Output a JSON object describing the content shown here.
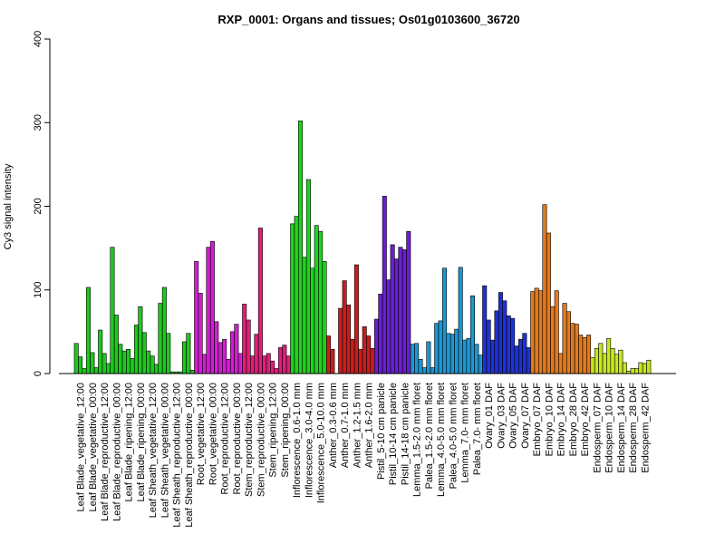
{
  "chart_data": {
    "type": "bar",
    "title": "RXP_0001: Organs and tissues; Os01g0103600_36720",
    "xlabel": "",
    "ylabel": "Cy3 signal intensity",
    "ylim": [
      0,
      400
    ],
    "yticks": [
      0,
      100,
      200,
      300,
      400
    ],
    "grid": false,
    "groups": [
      {
        "label": "Leaf Blade_vegetative_12:00",
        "color": "#1ec81e",
        "values": [
          36,
          20,
          6
        ]
      },
      {
        "label": "Leaf Blade_vegetative_00:00",
        "color": "#1ec81e",
        "values": [
          103,
          25,
          7
        ]
      },
      {
        "label": "Leaf Blade_reproductive_12:00",
        "color": "#1ec81e",
        "values": [
          52,
          24,
          12
        ]
      },
      {
        "label": "Leaf Blade_reproductive_00:00",
        "color": "#1ec81e",
        "values": [
          151,
          70,
          35
        ]
      },
      {
        "label": "Leaf Blade_ripening_12:00",
        "color": "#1ec81e",
        "values": [
          27,
          29,
          18
        ]
      },
      {
        "label": "Leaf Blade_ripening_00:00",
        "color": "#1ec81e",
        "values": [
          58,
          80,
          49
        ]
      },
      {
        "label": "Leaf Sheath_vegetative_12:00",
        "color": "#1ec81e",
        "values": [
          27,
          21,
          11
        ]
      },
      {
        "label": "Leaf Sheath_vegetative_00:00",
        "color": "#1ec81e",
        "values": [
          84,
          103,
          48
        ]
      },
      {
        "label": "Leaf Sheath_reproductive_12:00",
        "color": "#1ec81e",
        "values": [
          2,
          2,
          2
        ]
      },
      {
        "label": "Leaf Sheath_reproductive_00:00",
        "color": "#1ec81e",
        "values": [
          38,
          48,
          4
        ]
      },
      {
        "label": "Root_vegetative_12:00",
        "color": "#d21ed2",
        "values": [
          134,
          96,
          23
        ]
      },
      {
        "label": "Root_vegetative_00:00",
        "color": "#d21ed2",
        "values": [
          151,
          158,
          62
        ]
      },
      {
        "label": "Root_reproductive_12:00",
        "color": "#d21ed2",
        "values": [
          37,
          41,
          17
        ]
      },
      {
        "label": "Root_reproductive_00:00",
        "color": "#d21ed2",
        "values": [
          50,
          59,
          24
        ]
      },
      {
        "label": "Stem_reproductive_12:00",
        "color": "#e01e7a",
        "values": [
          83,
          64,
          21
        ]
      },
      {
        "label": "Stem_reproductive_00:00",
        "color": "#e01e7a",
        "values": [
          47,
          174,
          21
        ]
      },
      {
        "label": "Stem_ripening_12:00",
        "color": "#e01e7a",
        "values": [
          24,
          15,
          6
        ]
      },
      {
        "label": "Stem_ripening_00:00",
        "color": "#e01e7a",
        "values": [
          31,
          34,
          21
        ]
      },
      {
        "label": "Inflorescence_0.6-1.0 mm",
        "color": "#1ed21e",
        "values": [
          179,
          188,
          302
        ]
      },
      {
        "label": "Inflorescence_3.0-4.0 mm",
        "color": "#1ed21e",
        "values": [
          139,
          232,
          126
        ]
      },
      {
        "label": "Inflorescence_5.0-10.0 mm",
        "color": "#1ed21e",
        "values": [
          177,
          170,
          134
        ]
      },
      {
        "label": "Anther_0.3-0.6 mm",
        "color": "#c81e1e",
        "values": [
          45,
          29
        ]
      },
      {
        "label": "Anther_0.7-1.0 mm",
        "color": "#c81e1e",
        "values": [
          78,
          111,
          82
        ]
      },
      {
        "label": "Anther_1.2-1.5 mm",
        "color": "#c81e1e",
        "values": [
          41,
          130,
          29
        ]
      },
      {
        "label": "Anther_1.6-2.0 mm",
        "color": "#c81e1e",
        "values": [
          56,
          45,
          30
        ]
      },
      {
        "label": "Pistil_5-10 cm panicle",
        "color": "#6a1ed2",
        "values": [
          65,
          95,
          212
        ]
      },
      {
        "label": "Pistil_10-14 cm panicle",
        "color": "#6a1ed2",
        "values": [
          112,
          154,
          137
        ]
      },
      {
        "label": "Pistil_14-18 cm panicle",
        "color": "#6a1ed2",
        "values": [
          151,
          148,
          170
        ]
      },
      {
        "label": "Lemma_1.5-2.0 mm floret",
        "color": "#1e96d2",
        "values": [
          35,
          36,
          17
        ]
      },
      {
        "label": "Palea_1.5-2.0 mm floret",
        "color": "#1e96d2",
        "values": [
          7,
          38,
          7
        ]
      },
      {
        "label": "Lemma_4.0-5.0 mm floret",
        "color": "#1e96d2",
        "values": [
          60,
          63,
          126
        ]
      },
      {
        "label": "Palea_4.0-5.0 mm floret",
        "color": "#1e96d2",
        "values": [
          48,
          47,
          53
        ]
      },
      {
        "label": "Lemma_7.0- mm floret",
        "color": "#1e96d2",
        "values": [
          127,
          40,
          42
        ]
      },
      {
        "label": "Palea_7.0- mm floret",
        "color": "#1e96d2",
        "values": [
          93,
          35,
          22
        ]
      },
      {
        "label": "Ovary_01 DAF",
        "color": "#1e32d2",
        "values": [
          105,
          64,
          40
        ]
      },
      {
        "label": "Ovary_03 DAF",
        "color": "#1e32d2",
        "values": [
          75,
          97,
          87
        ]
      },
      {
        "label": "Ovary_05 DAF",
        "color": "#1e32d2",
        "values": [
          69,
          66,
          33
        ]
      },
      {
        "label": "Ovary_07 DAF",
        "color": "#1e32d2",
        "values": [
          41,
          48,
          31
        ]
      },
      {
        "label": "Embryo_07 DAF",
        "color": "#e27a1e",
        "values": [
          98,
          102,
          99
        ]
      },
      {
        "label": "Embryo_10 DAF",
        "color": "#e27a1e",
        "values": [
          202,
          168,
          80
        ]
      },
      {
        "label": "Embryo_14 DAF",
        "color": "#e27a1e",
        "values": [
          99,
          24,
          84
        ]
      },
      {
        "label": "Embryo_28 DAF",
        "color": "#e27a1e",
        "values": [
          74,
          60,
          59
        ]
      },
      {
        "label": "Embryo_42 DAF",
        "color": "#e27a1e",
        "values": [
          46,
          43,
          46
        ]
      },
      {
        "label": "Endosperm_07 DAF",
        "color": "#c8e61e",
        "values": [
          19,
          30,
          36
        ]
      },
      {
        "label": "Endosperm_10 DAF",
        "color": "#c8e61e",
        "values": [
          24,
          42,
          30
        ]
      },
      {
        "label": "Endosperm_14 DAF",
        "color": "#c8e61e",
        "values": [
          23,
          28,
          13
        ]
      },
      {
        "label": "Endosperm_28 DAF",
        "color": "#c8e61e",
        "values": [
          3,
          6,
          6
        ]
      },
      {
        "label": "Endosperm_42 DAF",
        "color": "#c8e61e",
        "values": [
          13,
          12,
          16
        ]
      }
    ]
  }
}
